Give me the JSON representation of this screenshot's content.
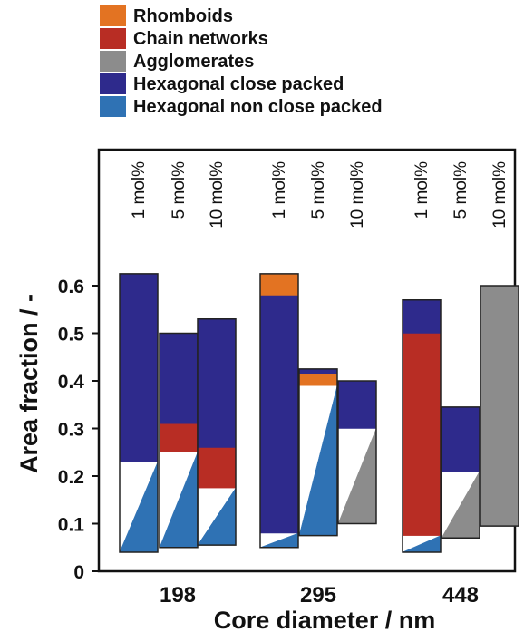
{
  "chart_data": {
    "type": "bar",
    "xlabel": "Core diameter / nm",
    "ylabel": "Area fraction / -",
    "ylim": [
      0,
      0.66
    ],
    "yticks": [
      "0",
      "0.1",
      "0.2",
      "0.3",
      "0.4",
      "0.5",
      "0.6"
    ],
    "categories": [
      "198",
      "295",
      "448"
    ],
    "sub_labels": [
      "1 mol%",
      "5 mol%",
      "10 mol%"
    ],
    "legend": [
      {
        "name": "Rhomboids",
        "color": "#e37322"
      },
      {
        "name": "Chain networks",
        "color": "#b82d24"
      },
      {
        "name": "Agglomerates",
        "color": "#8c8c8c"
      },
      {
        "name": "Hexagonal close packed",
        "color": "#2e2a8c"
      },
      {
        "name": "Hexagonal non close packed",
        "color": "#2f72b4"
      }
    ],
    "bars": [
      {
        "group": "198",
        "concentration": "1 mol%",
        "bottom": 0.04,
        "top": 0.625,
        "segments": [
          {
            "series": "Hexagonal non close packed",
            "start": 0.04,
            "end": 0.23
          },
          {
            "series": "Chain networks",
            "start": 0.23,
            "end": 0.23
          },
          {
            "series": "Hexagonal close packed",
            "start": 0.23,
            "end": 0.625
          }
        ]
      },
      {
        "group": "198",
        "concentration": "5 mol%",
        "bottom": 0.05,
        "top": 0.5,
        "segments": [
          {
            "series": "Hexagonal non close packed",
            "start": 0.05,
            "end": 0.25
          },
          {
            "series": "Chain networks",
            "start": 0.25,
            "end": 0.31
          },
          {
            "series": "Hexagonal close packed",
            "start": 0.31,
            "end": 0.5
          }
        ]
      },
      {
        "group": "198",
        "concentration": "10 mol%",
        "bottom": 0.055,
        "top": 0.53,
        "segments": [
          {
            "series": "Hexagonal non close packed",
            "start": 0.055,
            "end": 0.175
          },
          {
            "series": "Chain networks",
            "start": 0.175,
            "end": 0.26
          },
          {
            "series": "Hexagonal close packed",
            "start": 0.26,
            "end": 0.53
          }
        ]
      },
      {
        "group": "295",
        "concentration": "1 mol%",
        "bottom": 0.05,
        "top": 0.625,
        "segments": [
          {
            "series": "Hexagonal non close packed",
            "start": 0.05,
            "end": 0.08
          },
          {
            "series": "Hexagonal close packed",
            "start": 0.08,
            "end": 0.58
          },
          {
            "series": "Rhomboids",
            "start": 0.58,
            "end": 0.625
          }
        ]
      },
      {
        "group": "295",
        "concentration": "5 mol%",
        "bottom": 0.075,
        "top": 0.425,
        "segments": [
          {
            "series": "Hexagonal non close packed",
            "start": 0.075,
            "end": 0.39
          },
          {
            "series": "Rhomboids",
            "start": 0.39,
            "end": 0.415
          },
          {
            "series": "Hexagonal close packed",
            "start": 0.415,
            "end": 0.425
          }
        ]
      },
      {
        "group": "295",
        "concentration": "10 mol%",
        "bottom": 0.1,
        "top": 0.4,
        "segments": [
          {
            "series": "Agglomerates",
            "start": 0.1,
            "end": 0.3
          },
          {
            "series": "Hexagonal close packed",
            "start": 0.3,
            "end": 0.4
          }
        ]
      },
      {
        "group": "448",
        "concentration": "1 mol%",
        "bottom": 0.04,
        "top": 0.57,
        "segments": [
          {
            "series": "Hexagonal non close packed",
            "start": 0.04,
            "end": 0.075
          },
          {
            "series": "Chain networks",
            "start": 0.075,
            "end": 0.5
          },
          {
            "series": "Hexagonal close packed",
            "start": 0.5,
            "end": 0.57
          }
        ]
      },
      {
        "group": "448",
        "concentration": "5 mol%",
        "bottom": 0.07,
        "top": 0.345,
        "segments": [
          {
            "series": "Agglomerates",
            "start": 0.07,
            "end": 0.21
          },
          {
            "series": "Hexagonal close packed",
            "start": 0.21,
            "end": 0.345
          }
        ]
      },
      {
        "group": "448",
        "concentration": "10 mol%",
        "bottom": 0.095,
        "top": 0.6,
        "segments": [
          {
            "series": "Agglomerates",
            "start": 0.095,
            "end": 0.6
          }
        ]
      }
    ]
  }
}
